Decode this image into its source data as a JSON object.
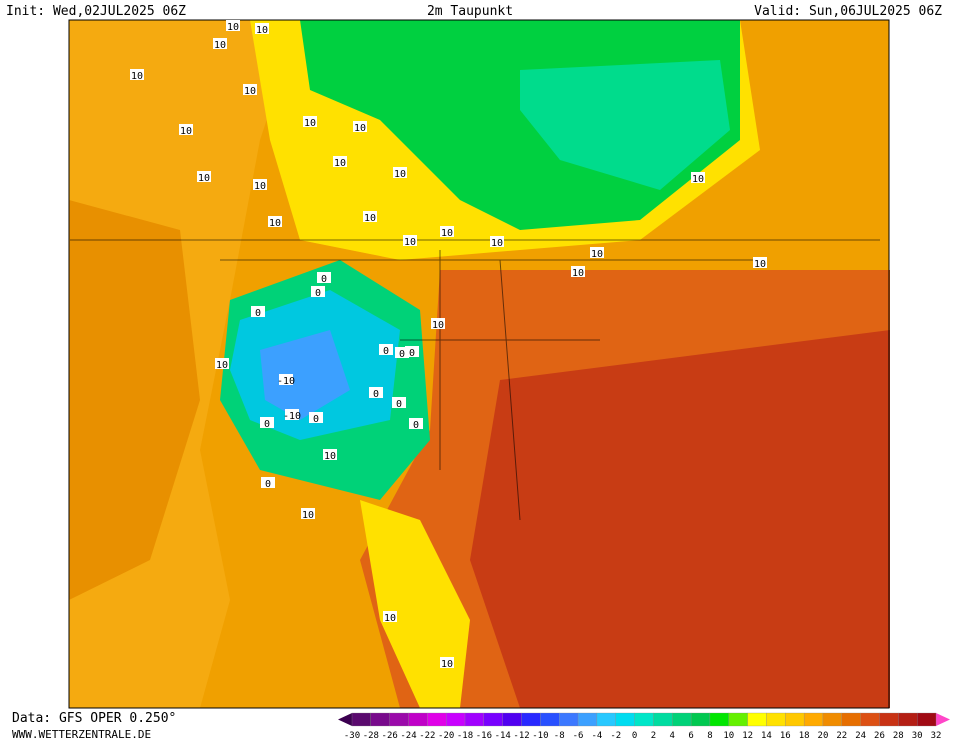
{
  "header": {
    "init": "Init: Wed,02JUL2025 06Z",
    "title": "2m Taupunkt",
    "valid": "Valid: Sun,06JUL2025 06Z"
  },
  "footer": {
    "source": "Data: GFS OPER 0.250°",
    "site": "WWW.WETTERZENTRALE.DE"
  },
  "colorbar": {
    "labels": [
      "-30",
      "-28",
      "-26",
      "-24",
      "-22",
      "-20",
      "-18",
      "-16",
      "-14",
      "-12",
      "-10",
      "-8",
      "-6",
      "-4",
      "-2",
      "0",
      "2",
      "4",
      "6",
      "8",
      "10",
      "12",
      "14",
      "16",
      "18",
      "20",
      "22",
      "24",
      "26",
      "28",
      "30",
      "32"
    ],
    "colors": [
      "#5a0a6e",
      "#780a8c",
      "#9a0aaa",
      "#c000c8",
      "#e000e8",
      "#c800ff",
      "#a000ff",
      "#7800ff",
      "#5000f0",
      "#2828ff",
      "#2850ff",
      "#3c78ff",
      "#3ca0ff",
      "#28c8ff",
      "#00dcf0",
      "#00e6c8",
      "#00dca0",
      "#00d278",
      "#00c850",
      "#00e600",
      "#64f000",
      "#ffff00",
      "#ffe100",
      "#ffc800",
      "#ffaa00",
      "#f08c00",
      "#e66e00",
      "#dc5014",
      "#c83214",
      "#b41e14",
      "#a00a14"
    ],
    "low_color": "#3c0050",
    "high_color": "#ff46c8"
  },
  "contour_labels": [
    "10",
    "10",
    "10",
    "10",
    "10",
    "10",
    "10",
    "10",
    "10",
    "10",
    "10",
    "10",
    "10",
    "10",
    "10",
    "10",
    "10",
    "10",
    "10",
    "10",
    "10",
    "10",
    "10",
    "10",
    "0",
    "0",
    "0",
    "0",
    "0",
    "0",
    "0",
    "0",
    "0",
    "0",
    "0",
    "0",
    "-10",
    "-10",
    "10",
    "10",
    "10"
  ]
}
